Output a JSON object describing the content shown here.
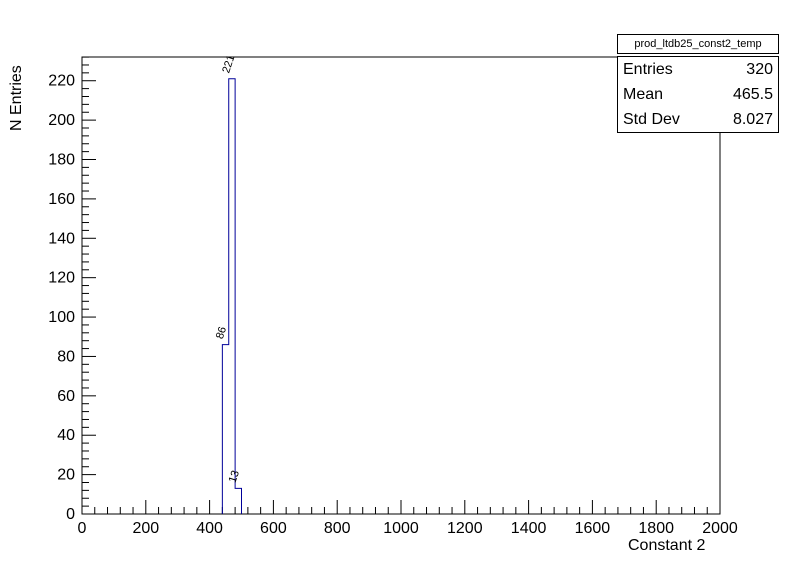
{
  "title_pane": {
    "text": "prod_ltdb25_const2_temp"
  },
  "stats_box": {
    "rows": [
      {
        "label": "Entries",
        "value": "320"
      },
      {
        "label": "Mean",
        "value": "465.5"
      },
      {
        "label": "Std Dev",
        "value": "8.027"
      }
    ]
  },
  "axes": {
    "x_title": "Constant 2",
    "y_title": "N Entries"
  },
  "chart_data": {
    "type": "bar",
    "title": "prod_ltdb25_const2_temp",
    "xlabel": "Constant 2",
    "ylabel": "N Entries",
    "xlim": [
      0,
      2000
    ],
    "ylim": [
      0,
      232.05
    ],
    "bin_width": 20,
    "bins": [
      {
        "x_low": 440,
        "x_high": 460,
        "count": 86
      },
      {
        "x_low": 460,
        "x_high": 480,
        "count": 221
      },
      {
        "x_low": 480,
        "x_high": 500,
        "count": 13
      }
    ],
    "x_ticks": [
      0,
      200,
      400,
      600,
      800,
      1000,
      1200,
      1400,
      1600,
      1800,
      2000
    ],
    "x_minor_step": 40,
    "y_ticks": [
      0,
      20,
      40,
      60,
      80,
      100,
      120,
      140,
      160,
      180,
      200,
      220
    ],
    "y_minor_step": 4,
    "grid": false,
    "legend": "none",
    "line_color": "#000099",
    "stats": {
      "entries": 320,
      "mean": 465.5,
      "std_dev": 8.027
    }
  }
}
